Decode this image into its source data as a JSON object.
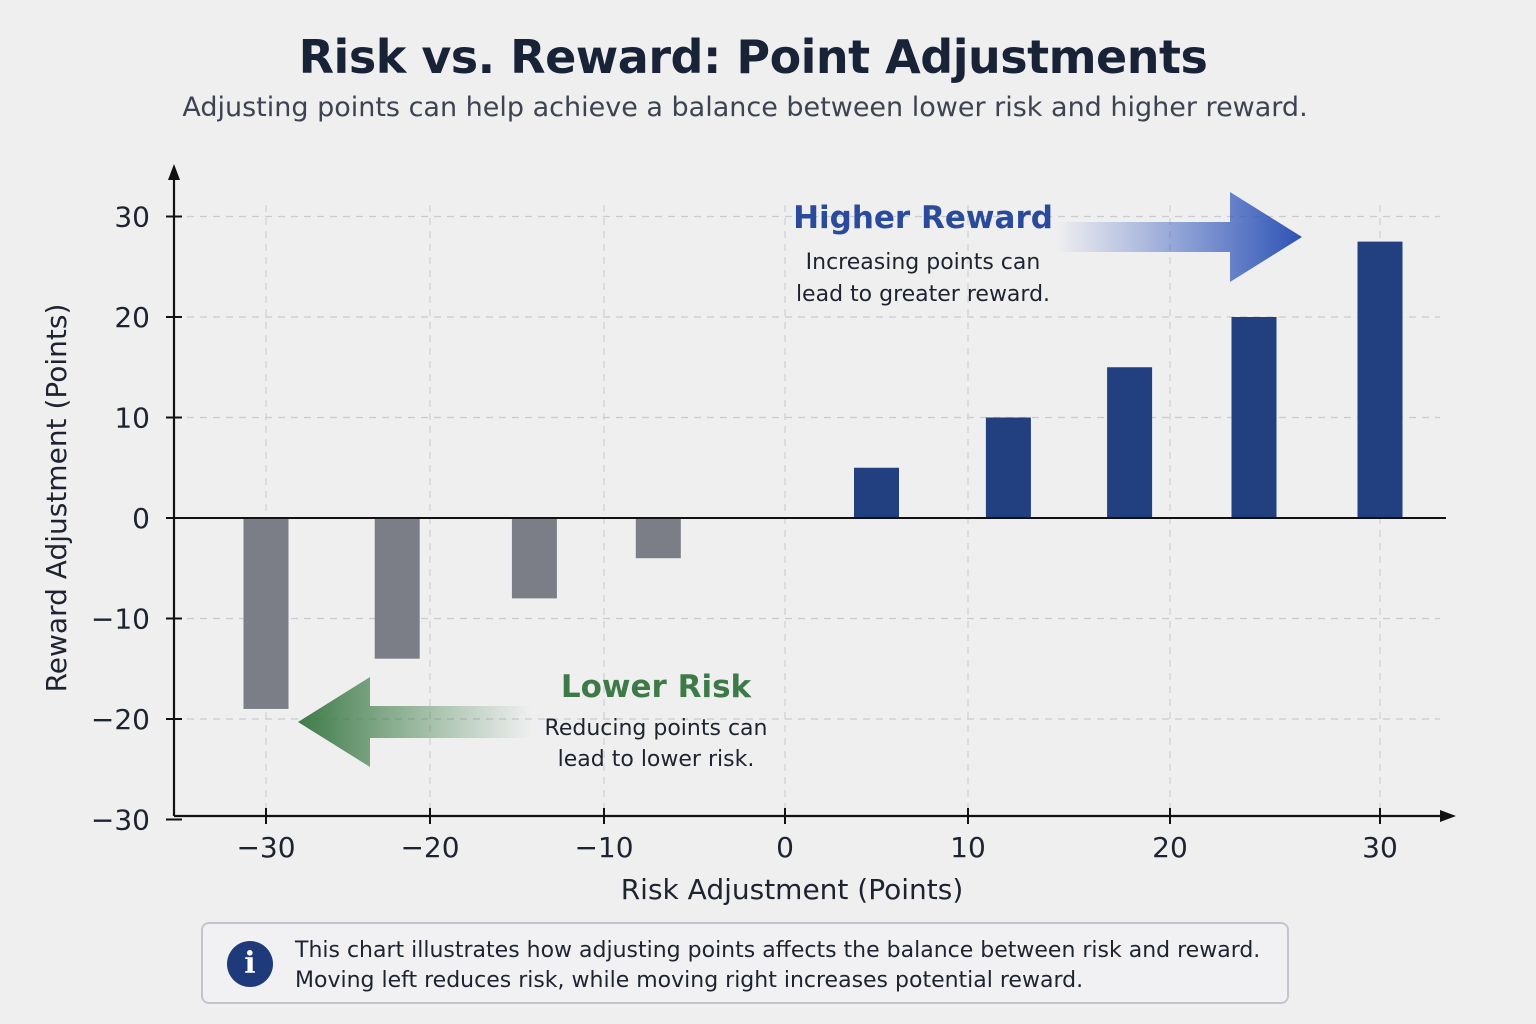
{
  "title": "Risk vs. Reward: Point Adjustments",
  "subtitle": "Adjusting points can help achieve a balance between lower risk and higher reward.",
  "chart_data": {
    "type": "bar",
    "x": [
      -30,
      -22,
      -14,
      -7,
      5,
      12,
      18,
      24,
      30
    ],
    "values": [
      -19,
      -14,
      -8,
      -4,
      5,
      10,
      15,
      20,
      27.5
    ],
    "xlabel": "Risk Adjustment (Points)",
    "ylabel": "Reward Adjustment (Points)",
    "xlim": [
      -35,
      35
    ],
    "ylim": [
      -30,
      35
    ],
    "xticks": [
      -30,
      -20,
      -10,
      0,
      10,
      20,
      30
    ],
    "xtick_labels": [
      "−30",
      "−20",
      "−10",
      "0",
      "10",
      "20",
      "30"
    ],
    "yticks": [
      30,
      20,
      10,
      0,
      -10,
      -20,
      -30
    ],
    "ytick_labels": [
      "30",
      "20",
      "10",
      "0",
      "−10",
      "−20",
      "−30"
    ],
    "grid": true,
    "colors": {
      "negative": "#7b7e86",
      "positive": "#223f80"
    },
    "annotations": {
      "higher_reward": {
        "title": "Higher Reward",
        "line1": "Increasing points can",
        "line2": "lead to greater reward.",
        "color": "#2a4b9c"
      },
      "lower_risk": {
        "title": "Lower Risk",
        "line1": "Reducing points can",
        "line2": "lead to lower risk.",
        "color": "#3e7a48"
      }
    }
  },
  "info": {
    "icon": "info-icon",
    "icon_glyph": "i",
    "line1": "This chart illustrates how adjusting points affects the balance between risk and reward.",
    "line2": "Moving left reduces risk, while moving right increases potential reward."
  }
}
